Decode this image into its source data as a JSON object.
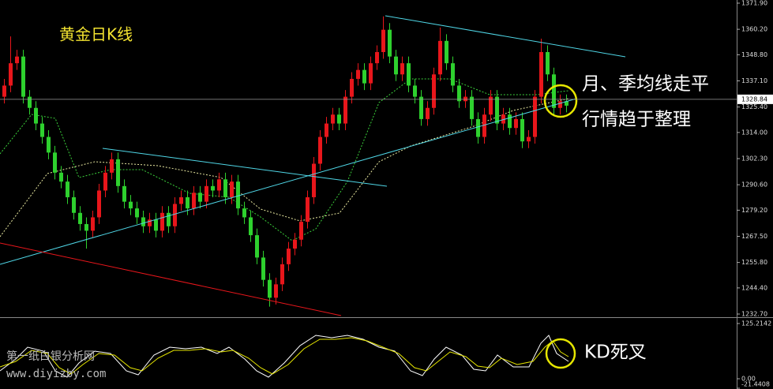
{
  "chart_data": [
    {
      "type": "candlestick",
      "title": "黄金日K线",
      "annotations": [
        "月、季均线走平",
        "行情趋于整理"
      ],
      "up_color": "#e8161b",
      "down_color": "#2ed12e",
      "open": [
        1330,
        1335,
        1345,
        1348,
        1330,
        1325,
        1318,
        1312,
        1305,
        1296,
        1292,
        1285,
        1278,
        1273,
        1270,
        1276,
        1288,
        1296,
        1302,
        1290,
        1283,
        1280,
        1276,
        1272,
        1275,
        1270,
        1278,
        1272,
        1282,
        1285,
        1280,
        1287,
        1283,
        1290,
        1288,
        1293,
        1285,
        1292,
        1280,
        1276,
        1268,
        1258,
        1248,
        1240,
        1246,
        1255,
        1262,
        1266,
        1274,
        1285,
        1300,
        1312,
        1318,
        1322,
        1318,
        1330,
        1338,
        1342,
        1336,
        1345,
        1350,
        1360,
        1348,
        1340,
        1345,
        1335,
        1330,
        1320,
        1325,
        1340,
        1355,
        1345,
        1335,
        1328,
        1330,
        1320,
        1312,
        1322,
        1330,
        1318,
        1322,
        1316,
        1320,
        1310,
        1312,
        1330,
        1350,
        1340,
        1325,
        1328
      ],
      "high": [
        1338,
        1357,
        1351,
        1351,
        1333,
        1328,
        1321,
        1315,
        1308,
        1299,
        1295,
        1288,
        1281,
        1276,
        1279,
        1291,
        1299,
        1305,
        1305,
        1293,
        1286,
        1283,
        1279,
        1278,
        1278,
        1281,
        1281,
        1285,
        1288,
        1288,
        1290,
        1290,
        1293,
        1293,
        1296,
        1296,
        1295,
        1295,
        1283,
        1279,
        1271,
        1261,
        1251,
        1249,
        1258,
        1265,
        1269,
        1277,
        1288,
        1303,
        1315,
        1321,
        1325,
        1325,
        1333,
        1341,
        1345,
        1345,
        1348,
        1353,
        1366,
        1363,
        1351,
        1348,
        1348,
        1338,
        1333,
        1328,
        1343,
        1361,
        1358,
        1348,
        1338,
        1333,
        1333,
        1323,
        1325,
        1333,
        1333,
        1325,
        1325,
        1323,
        1323,
        1315,
        1333,
        1356,
        1353,
        1343,
        1331,
        1331
      ],
      "low": [
        1327,
        1332,
        1342,
        1327,
        1322,
        1315,
        1309,
        1302,
        1293,
        1289,
        1282,
        1275,
        1270,
        1262,
        1267,
        1273,
        1285,
        1293,
        1287,
        1280,
        1277,
        1273,
        1269,
        1269,
        1267,
        1267,
        1269,
        1269,
        1279,
        1277,
        1277,
        1280,
        1280,
        1285,
        1285,
        1282,
        1282,
        1277,
        1273,
        1265,
        1255,
        1245,
        1236,
        1237,
        1243,
        1252,
        1259,
        1263,
        1271,
        1282,
        1297,
        1309,
        1315,
        1315,
        1315,
        1327,
        1335,
        1333,
        1333,
        1342,
        1347,
        1345,
        1337,
        1337,
        1332,
        1327,
        1317,
        1317,
        1322,
        1337,
        1342,
        1332,
        1325,
        1325,
        1317,
        1309,
        1309,
        1319,
        1315,
        1315,
        1313,
        1313,
        1307,
        1307,
        1309,
        1327,
        1337,
        1322,
        1322,
        1323
      ],
      "close": [
        1335,
        1345,
        1348,
        1330,
        1325,
        1318,
        1312,
        1305,
        1296,
        1292,
        1285,
        1278,
        1273,
        1270,
        1276,
        1288,
        1296,
        1302,
        1290,
        1283,
        1280,
        1276,
        1272,
        1275,
        1270,
        1278,
        1272,
        1282,
        1285,
        1280,
        1287,
        1283,
        1290,
        1288,
        1293,
        1285,
        1292,
        1280,
        1276,
        1268,
        1258,
        1248,
        1240,
        1246,
        1255,
        1262,
        1266,
        1274,
        1285,
        1300,
        1312,
        1318,
        1322,
        1318,
        1330,
        1338,
        1342,
        1336,
        1345,
        1350,
        1360,
        1348,
        1340,
        1345,
        1335,
        1330,
        1320,
        1325,
        1340,
        1355,
        1345,
        1335,
        1328,
        1330,
        1320,
        1312,
        1322,
        1330,
        1318,
        1322,
        1316,
        1320,
        1310,
        1312,
        1330,
        1350,
        1340,
        1325,
        1328,
        1326
      ],
      "last_price": 1328.84,
      "ylim": [
        1232.7,
        1371.9
      ],
      "yticks": [
        {
          "value": 1371.9,
          "label": "1371.90"
        },
        {
          "value": 1360.2,
          "label": "1360.20"
        },
        {
          "value": 1348.8,
          "label": "1348.80"
        },
        {
          "value": 1337.1,
          "label": "1337.10"
        },
        {
          "value": 1325.4,
          "label": "1325.40"
        },
        {
          "value": 1314,
          "label": "1314.00"
        },
        {
          "value": 1302.3,
          "label": "1302.30"
        },
        {
          "value": 1290.6,
          "label": "1290.60"
        },
        {
          "value": 1279.2,
          "label": "1279.20"
        },
        {
          "value": 1267.5,
          "label": "1267.50"
        },
        {
          "value": 1255.8,
          "label": "1255.80"
        },
        {
          "value": 1244.4,
          "label": "1244.40"
        },
        {
          "value": 1232.7,
          "label": "1232.70"
        }
      ]
    },
    {
      "type": "stochastic",
      "annotation": "KD死叉",
      "watermark": [
        "第一纸白银分析网",
        "www.diyizby.com"
      ],
      "ylim": [
        -21.4408,
        125.2142
      ],
      "yticks": [
        125.2142,
        {
          "value": 0,
          "label": "0.00"
        },
        -21.4408
      ]
    }
  ]
}
